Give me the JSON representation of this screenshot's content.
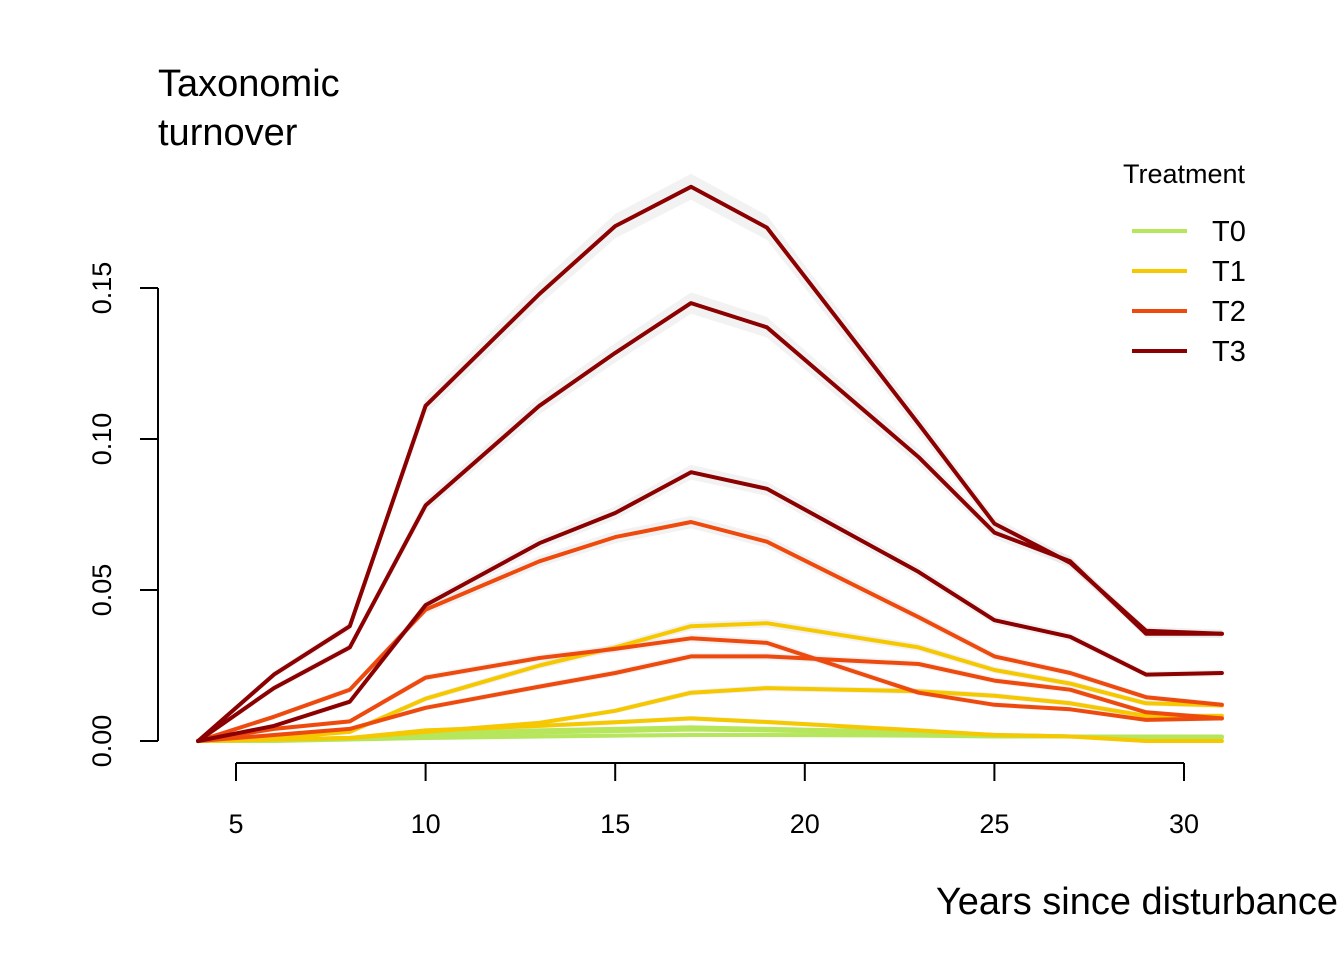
{
  "chart_data": {
    "type": "line",
    "title_lines": [
      "Taxonomic",
      "turnover"
    ],
    "xlabel": "Years since disturbance",
    "ylabel": "",
    "xlim": [
      3.5,
      31
    ],
    "ylim": [
      0,
      0.19
    ],
    "x_ticks": [
      5,
      10,
      15,
      20,
      25,
      30
    ],
    "x_tick_labels": [
      "5",
      "10",
      "15",
      "20",
      "25",
      "30"
    ],
    "y_ticks": [
      0,
      0.05,
      0.1,
      0.15
    ],
    "y_tick_labels": [
      "0.00",
      "0.05",
      "0.10",
      "0.15"
    ],
    "grid": false,
    "legend": {
      "title": "Treatment",
      "position": "top-right",
      "entries": [
        {
          "label": "T0",
          "color": "#B5E65C"
        },
        {
          "label": "T1",
          "color": "#F5C800"
        },
        {
          "label": "T2",
          "color": "#EE4A0E"
        },
        {
          "label": "T3",
          "color": "#8B0000"
        }
      ]
    },
    "x": [
      4,
      6,
      8,
      10,
      13,
      15,
      17,
      19,
      23,
      25,
      27,
      29,
      31
    ],
    "series": [
      {
        "group": "T0",
        "color": "#B5E65C",
        "values": [
          0,
          0,
          0.0005,
          0.001,
          0.0015,
          0.0018,
          0.002,
          0.002,
          0.0018,
          0.0015,
          0.0015,
          0.0015,
          0.0015
        ]
      },
      {
        "group": "T0",
        "color": "#B5E65C",
        "values": [
          0,
          0.0003,
          0.0008,
          0.002,
          0.0028,
          0.0033,
          0.0038,
          0.0035,
          0.0025,
          0.002,
          0.0015,
          0.0012,
          0.0012
        ]
      },
      {
        "group": "T0",
        "color": "#B5E65C",
        "values": [
          0,
          0.0004,
          0.001,
          0.0025,
          0.0035,
          0.004,
          0.0045,
          0.004,
          0.003,
          0.002,
          0.0015,
          0.0012,
          0.0012
        ]
      },
      {
        "group": "T1",
        "color": "#F5C800",
        "values": [
          0,
          0.0005,
          0.001,
          0.0035,
          0.005,
          0.0062,
          0.0075,
          0.0063,
          0.0035,
          0.002,
          0.0015,
          0,
          0
        ]
      },
      {
        "group": "T1",
        "color": "#F5C800",
        "values": [
          0,
          0.0005,
          0.001,
          0.003,
          0.006,
          0.01,
          0.016,
          0.0175,
          0.0165,
          0.015,
          0.0125,
          0.0083,
          0.0083
        ]
      },
      {
        "group": "T1",
        "color": "#F5C800",
        "values": [
          0,
          0.001,
          0.003,
          0.014,
          0.025,
          0.031,
          0.038,
          0.039,
          0.031,
          0.0235,
          0.019,
          0.0125,
          0.0118
        ]
      },
      {
        "group": "T2",
        "color": "#EE4A0E",
        "values": [
          0,
          0.002,
          0.004,
          0.011,
          0.018,
          0.0225,
          0.028,
          0.028,
          0.0255,
          0.02,
          0.017,
          0.0095,
          0.0075
        ]
      },
      {
        "group": "T2",
        "color": "#EE4A0E",
        "values": [
          0,
          0.004,
          0.0065,
          0.021,
          0.0275,
          0.0305,
          0.034,
          0.0325,
          0.016,
          0.012,
          0.0105,
          0.007,
          0.0075
        ]
      },
      {
        "group": "T2",
        "color": "#EE4A0E",
        "values": [
          0,
          0.008,
          0.017,
          0.0435,
          0.0595,
          0.0675,
          0.0725,
          0.066,
          0.041,
          0.028,
          0.0225,
          0.0145,
          0.012
        ]
      },
      {
        "group": "T3",
        "color": "#8B0000",
        "values": [
          0,
          0.005,
          0.013,
          0.045,
          0.0655,
          0.0755,
          0.089,
          0.0835,
          0.056,
          0.04,
          0.0345,
          0.022,
          0.0225
        ]
      },
      {
        "group": "T3",
        "color": "#8B0000",
        "values": [
          0,
          0.0175,
          0.031,
          0.078,
          0.111,
          0.1285,
          0.145,
          0.137,
          0.094,
          0.069,
          0.0595,
          0.0355,
          0.0355
        ]
      },
      {
        "group": "T3",
        "color": "#8B0000",
        "values": [
          0,
          0.022,
          0.038,
          0.111,
          0.148,
          0.1705,
          0.1835,
          0.17,
          0.105,
          0.072,
          0.059,
          0.0365,
          0.0355
        ]
      }
    ]
  }
}
